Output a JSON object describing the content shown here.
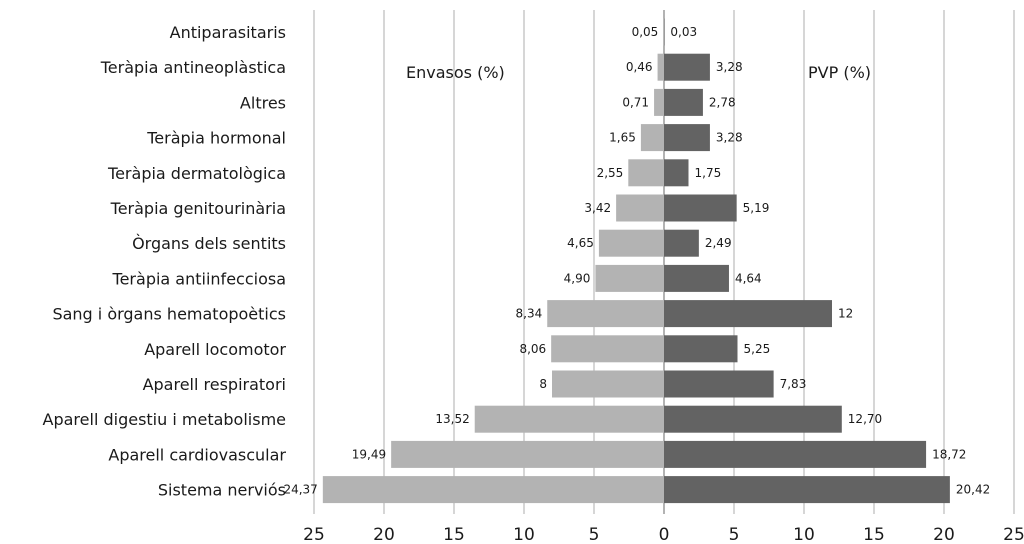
{
  "chart_data": {
    "type": "bar",
    "orientation": "horizontal-butterfly",
    "categories": [
      "Antiparasitaris",
      "Teràpia antineoplàstica",
      "Altres",
      "Teràpia hormonal",
      "Teràpia dermatològica",
      "Teràpia genitourinària",
      "Òrgans dels sentits",
      "Teràpia antiinfecciosa",
      "Sang i òrgans hematopoètics",
      "Aparell locomotor",
      "Aparell respiratori",
      "Aparell digestiu i metabolisme",
      "Aparell cardiovascular",
      "Sistema nerviós"
    ],
    "series": [
      {
        "name": "Envasos (%)",
        "side": "left",
        "color": "#b3b3b3",
        "values": [
          0.05,
          0.46,
          0.71,
          1.65,
          2.55,
          3.42,
          4.65,
          4.9,
          8.34,
          8.06,
          8,
          13.52,
          19.49,
          24.37
        ],
        "labels": [
          "0,05",
          "0,46",
          "0,71",
          "1,65",
          "2,55",
          "3,42",
          "4,65",
          "4,90",
          "8,34",
          "8,06",
          "8",
          "13,52",
          "19,49",
          "24,37"
        ]
      },
      {
        "name": "PVP (%)",
        "side": "right",
        "color": "#636363",
        "values": [
          0.03,
          3.28,
          2.78,
          3.28,
          1.75,
          5.19,
          2.49,
          4.64,
          12,
          5.25,
          7.83,
          12.7,
          18.72,
          20.42
        ],
        "labels": [
          "0,03",
          "3,28",
          "2,78",
          "3,28",
          "1,75",
          "5,19",
          "2,49",
          "4,64",
          "12",
          "5,25",
          "7,83",
          "12,70",
          "18,72",
          "20,42"
        ]
      }
    ],
    "xlim": [
      -25,
      25
    ],
    "xticks": [
      -25,
      -20,
      -15,
      -10,
      -5,
      0,
      5,
      10,
      15,
      20,
      25
    ],
    "xtick_labels": [
      "25",
      "20",
      "15",
      "10",
      "5",
      "0",
      "5",
      "10",
      "15",
      "20",
      "25"
    ],
    "grid": true,
    "title": "",
    "xlabel": "",
    "ylabel": ""
  }
}
